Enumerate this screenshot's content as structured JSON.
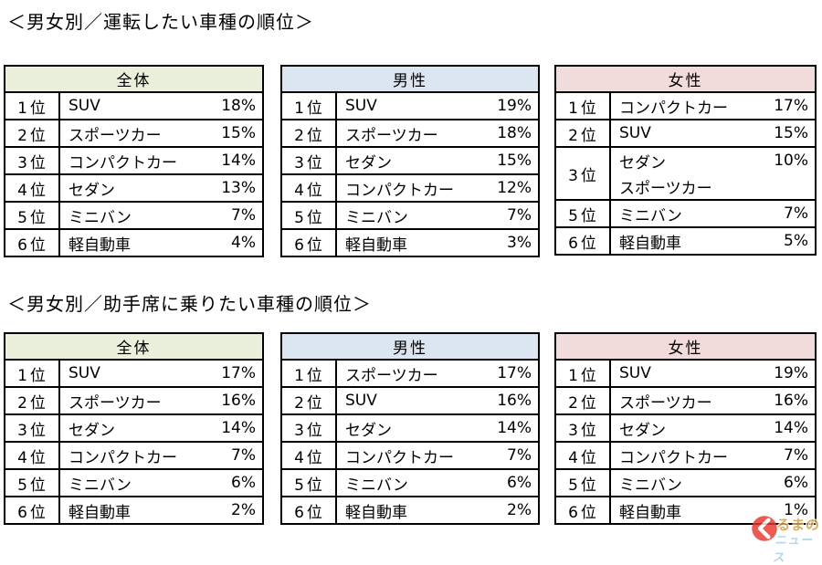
{
  "sections": [
    {
      "title": "＜男女別／運転したい車種の順位＞",
      "tables": [
        {
          "id": "overall-drive",
          "header": "全体",
          "header_bg": "#ebf0dd",
          "rows": [
            {
              "rank": "1位",
              "name": "SUV",
              "value": "18%"
            },
            {
              "rank": "2位",
              "name": "スポーツカー",
              "value": "15%"
            },
            {
              "rank": "3位",
              "name": "コンパクトカー",
              "value": "14%"
            },
            {
              "rank": "4位",
              "name": "セダン",
              "value": "13%"
            },
            {
              "rank": "5位",
              "name": "ミニバン",
              "value": "7%"
            },
            {
              "rank": "6位",
              "name": "軽自動車",
              "value": "4%"
            }
          ]
        },
        {
          "id": "male-drive",
          "header": "男性",
          "header_bg": "#dce6f1",
          "rows": [
            {
              "rank": "1位",
              "name": "SUV",
              "value": "19%"
            },
            {
              "rank": "2位",
              "name": "スポーツカー",
              "value": "18%"
            },
            {
              "rank": "3位",
              "name": "セダン",
              "value": "15%"
            },
            {
              "rank": "4位",
              "name": "コンパクトカー",
              "value": "12%"
            },
            {
              "rank": "5位",
              "name": "ミニバン",
              "value": "7%"
            },
            {
              "rank": "6位",
              "name": "軽自動車",
              "value": "3%"
            }
          ]
        },
        {
          "id": "female-drive",
          "header": "女性",
          "header_bg": "#f2dcdb",
          "rows": [
            {
              "rank": "1位",
              "name": "コンパクトカー",
              "value": "17%"
            },
            {
              "rank": "2位",
              "name": "SUV",
              "value": "15%"
            },
            {
              "rank": "3位",
              "names": [
                "セダン",
                "スポーツカー"
              ],
              "value": "10%"
            },
            {
              "rank": "5位",
              "name": "ミニバン",
              "value": "7%"
            },
            {
              "rank": "6位",
              "name": "軽自動車",
              "value": "5%"
            }
          ]
        }
      ]
    },
    {
      "title": "＜男女別／助手席に乗りたい車種の順位＞",
      "tables": [
        {
          "id": "overall-passenger",
          "header": "全体",
          "header_bg": "#ebf0dd",
          "rows": [
            {
              "rank": "1位",
              "name": "SUV",
              "value": "17%"
            },
            {
              "rank": "2位",
              "name": "スポーツカー",
              "value": "16%"
            },
            {
              "rank": "3位",
              "name": "セダン",
              "value": "14%"
            },
            {
              "rank": "4位",
              "name": "コンパクトカー",
              "value": "7%"
            },
            {
              "rank": "5位",
              "name": "ミニバン",
              "value": "6%"
            },
            {
              "rank": "6位",
              "name": "軽自動車",
              "value": "2%"
            }
          ]
        },
        {
          "id": "male-passenger",
          "header": "男性",
          "header_bg": "#dce6f1",
          "rows": [
            {
              "rank": "1位",
              "name": "スポーツカー",
              "value": "17%"
            },
            {
              "rank": "2位",
              "name": "SUV",
              "value": "16%"
            },
            {
              "rank": "3位",
              "name": "セダン",
              "value": "14%"
            },
            {
              "rank": "4位",
              "name": "コンパクトカー",
              "value": "7%"
            },
            {
              "rank": "5位",
              "name": "ミニバン",
              "value": "6%"
            },
            {
              "rank": "6位",
              "name": "軽自動車",
              "value": "2%"
            }
          ]
        },
        {
          "id": "female-passenger",
          "header": "女性",
          "header_bg": "#f2dcdb",
          "rows": [
            {
              "rank": "1位",
              "name": "SUV",
              "value": "19%"
            },
            {
              "rank": "2位",
              "name": "スポーツカー",
              "value": "16%"
            },
            {
              "rank": "3位",
              "name": "セダン",
              "value": "14%"
            },
            {
              "rank": "4位",
              "name": "コンパクトカー",
              "value": "7%"
            },
            {
              "rank": "5位",
              "name": "ミニバン",
              "value": "6%"
            },
            {
              "rank": "6位",
              "name": "軽自動車",
              "value": "1%"
            }
          ]
        }
      ]
    }
  ],
  "watermark": {
    "top_text": "るまの",
    "bottom_text": "ニュース",
    "circle_color": "#e8372c",
    "top_color": "#d89b3a",
    "bottom_color": "#a3d0e8"
  }
}
